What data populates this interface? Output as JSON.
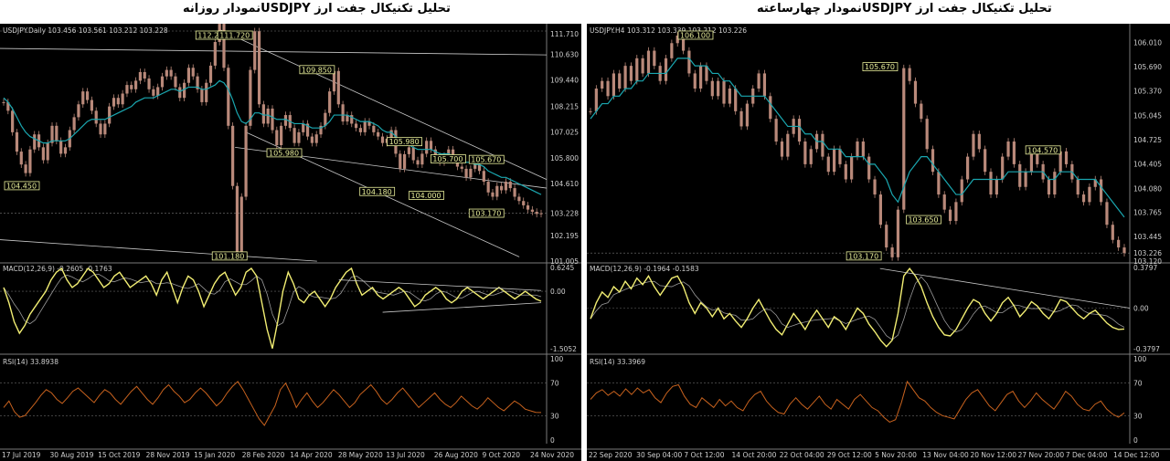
{
  "titles": {
    "left": "تحلیل تکنیکال جفت ارز  USDJPYنمودار روزانه",
    "right": "تحلیل تکنیکال جفت ارز  USDJPYنمودار چهارساعته"
  },
  "colors": {
    "candle": "#b9897a",
    "ma": "#1aa7b0",
    "macd": "#f2ee73",
    "rsi": "#c8621e",
    "trend": "#c9c9c9",
    "label_bg": "#e8ee9a"
  },
  "chart_data": [
    {
      "type": "line",
      "name": "USDJPY.Daily",
      "header": "USDJPY.Daily  103.456 103.561 103.212 103.228",
      "y_ticks": [
        "111.710",
        "110.630",
        "109.440",
        "108.215",
        "107.025",
        "105.800",
        "104.610",
        "103.228",
        "102.195",
        "101.005"
      ],
      "ylim": [
        101.005,
        111.71
      ],
      "price_labels": [
        {
          "t": "112.220",
          "x": 0.36,
          "y": 112.22
        },
        {
          "t": "111.720",
          "x": 0.4,
          "y": 111.72
        },
        {
          "t": "109.850",
          "x": 0.55,
          "y": 109.85
        },
        {
          "t": "105.980",
          "x": 0.49,
          "y": 105.98
        },
        {
          "t": "105.980",
          "x": 0.71,
          "y": 106.5
        },
        {
          "t": "104.450",
          "x": 0.01,
          "y": 104.45
        },
        {
          "t": "104.180",
          "x": 0.66,
          "y": 104.18
        },
        {
          "t": "105.700",
          "x": 0.79,
          "y": 105.7
        },
        {
          "t": "105.670",
          "x": 0.86,
          "y": 105.67
        },
        {
          "t": "104.000",
          "x": 0.75,
          "y": 104.0
        },
        {
          "t": "103.170",
          "x": 0.86,
          "y": 103.17
        },
        {
          "t": "101.180",
          "x": 0.39,
          "y": 101.18
        }
      ],
      "close": [
        108.4,
        108.0,
        107.0,
        106.1,
        105.5,
        105.1,
        106.2,
        106.9,
        106.3,
        105.7,
        106.5,
        107.3,
        106.6,
        106.0,
        106.3,
        107.1,
        107.7,
        108.3,
        108.9,
        108.5,
        108.0,
        107.4,
        106.9,
        107.4,
        108.2,
        108.6,
        108.3,
        108.8,
        109.2,
        109.0,
        109.4,
        109.8,
        109.5,
        109.0,
        108.7,
        109.1,
        109.6,
        109.9,
        109.6,
        109.1,
        108.6,
        109.3,
        110.0,
        109.6,
        109.0,
        108.4,
        109.3,
        110.1,
        111.2,
        112.2,
        110.0,
        107.3,
        104.5,
        101.2,
        104.0,
        107.3,
        109.9,
        111.7,
        108.3,
        107.4,
        108.1,
        107.1,
        106.4,
        107.3,
        107.8,
        107.2,
        106.5,
        107.0,
        107.4,
        106.8,
        106.5,
        106.9,
        107.3,
        107.9,
        108.9,
        109.85,
        108.3,
        107.5,
        107.8,
        107.4,
        107.2,
        107.0,
        107.5,
        107.3,
        107.0,
        106.8,
        106.5,
        106.7,
        107.1,
        106.0,
        105.3,
        105.98,
        106.3,
        105.7,
        105.5,
        106.0,
        106.6,
        106.2,
        105.9,
        105.6,
        105.9,
        106.2,
        105.7,
        105.4,
        105.3,
        104.9,
        105.3,
        105.5,
        105.2,
        104.7,
        104.2,
        104.0,
        104.5,
        104.3,
        104.7,
        104.4,
        104.0,
        103.8,
        103.6,
        103.4,
        103.3,
        103.2,
        103.228
      ],
      "ma": [
        108.6,
        108.4,
        108.1,
        107.7,
        107.3,
        107.0,
        106.8,
        106.7,
        106.6,
        106.5,
        106.5,
        106.6,
        106.6,
        106.6,
        106.6,
        106.7,
        106.9,
        107.1,
        107.3,
        107.5,
        107.6,
        107.6,
        107.6,
        107.6,
        107.7,
        107.8,
        107.9,
        108.0,
        108.1,
        108.2,
        108.4,
        108.5,
        108.6,
        108.6,
        108.6,
        108.7,
        108.8,
        108.9,
        109.0,
        109.0,
        108.9,
        109.0,
        109.1,
        109.1,
        109.1,
        109.0,
        109.0,
        109.1,
        109.2,
        109.4,
        109.3,
        109.0,
        108.5,
        107.9,
        107.5,
        107.4,
        107.6,
        107.9,
        107.9,
        107.8,
        107.8,
        107.7,
        107.6,
        107.6,
        107.6,
        107.5,
        107.4,
        107.4,
        107.4,
        107.3,
        107.2,
        107.2,
        107.2,
        107.3,
        107.5,
        107.8,
        107.8,
        107.8,
        107.8,
        107.7,
        107.6,
        107.5,
        107.5,
        107.5,
        107.4,
        107.3,
        107.1,
        107.0,
        107.0,
        106.8,
        106.6,
        106.5,
        106.4,
        106.3,
        106.2,
        106.2,
        106.2,
        106.2,
        106.1,
        106.0,
        106.0,
        106.0,
        105.9,
        105.8,
        105.7,
        105.6,
        105.6,
        105.5,
        105.5,
        105.4,
        105.2,
        105.1,
        105.0,
        104.9,
        104.9,
        104.8,
        104.7,
        104.6,
        104.5,
        104.4,
        104.3,
        104.2,
        104.1
      ],
      "macd_header": "MACD(12,26,9) -0.2605 -0.1763",
      "macd_ticks": [
        "0.6245",
        "0.00",
        "-1.5052"
      ],
      "macd": [
        0.1,
        -0.3,
        -0.8,
        -1.1,
        -0.9,
        -0.6,
        -0.4,
        -0.2,
        0.0,
        0.3,
        0.5,
        0.6,
        0.3,
        0.1,
        0.2,
        0.4,
        0.6,
        0.5,
        0.3,
        0.1,
        0.2,
        0.4,
        0.5,
        0.3,
        0.1,
        0.2,
        0.3,
        0.4,
        0.2,
        -0.1,
        0.3,
        0.5,
        0.1,
        -0.3,
        0.1,
        0.4,
        0.3,
        0.0,
        -0.4,
        -0.1,
        0.2,
        0.4,
        0.5,
        0.2,
        -0.1,
        0.1,
        0.5,
        0.6,
        0.4,
        -0.3,
        -1.0,
        -1.5,
        -0.8,
        0.0,
        0.5,
        0.2,
        -0.2,
        -0.3,
        -0.1,
        0.0,
        -0.2,
        -0.4,
        -0.2,
        0.1,
        0.3,
        0.5,
        0.6,
        0.2,
        -0.1,
        0.0,
        0.1,
        -0.1,
        -0.2,
        -0.1,
        0.0,
        0.1,
        0.0,
        -0.2,
        -0.4,
        -0.3,
        -0.1,
        0.0,
        0.1,
        0.0,
        -0.2,
        -0.3,
        -0.2,
        0.0,
        0.1,
        0.0,
        -0.1,
        -0.2,
        -0.1,
        0.0,
        0.1,
        0.0,
        -0.1,
        -0.2,
        -0.1,
        0.0,
        -0.1,
        -0.2,
        -0.26
      ],
      "rsi_header": "RSI(14) 33.8938",
      "rsi_ticks": [
        "100",
        "70",
        "30",
        "0"
      ],
      "rsi": [
        40,
        48,
        35,
        28,
        30,
        38,
        46,
        55,
        62,
        58,
        50,
        45,
        52,
        60,
        64,
        58,
        52,
        46,
        55,
        62,
        58,
        50,
        44,
        52,
        60,
        66,
        58,
        50,
        44,
        52,
        62,
        68,
        60,
        54,
        46,
        50,
        58,
        64,
        58,
        50,
        42,
        48,
        58,
        66,
        72,
        62,
        50,
        38,
        26,
        18,
        30,
        42,
        62,
        70,
        56,
        40,
        50,
        58,
        48,
        40,
        46,
        54,
        62,
        56,
        48,
        40,
        46,
        56,
        62,
        68,
        60,
        50,
        44,
        50,
        58,
        64,
        56,
        48,
        40,
        46,
        52,
        58,
        50,
        44,
        40,
        46,
        54,
        48,
        42,
        38,
        44,
        52,
        46,
        40,
        36,
        42,
        48,
        44,
        38,
        36,
        34,
        33.9
      ],
      "x_ticks": [
        "17 Jul 2019",
        "30 Aug 2019",
        "15 Oct 2019",
        "28 Nov 2019",
        "15 Jan 2020",
        "28 Feb 2020",
        "14 Apr 2020",
        "28 May 2020",
        "13 Jul 2020",
        "26 Aug 2020",
        "9 Oct 2020",
        "24 Nov 2020"
      ]
    },
    {
      "type": "line",
      "name": "USDJPY.H4",
      "header": "USDJPY.H4  103.312 103.339 103.212 103.226",
      "y_ticks": [
        "106.010",
        "105.690",
        "105.370",
        "105.045",
        "104.725",
        "104.405",
        "104.080",
        "103.765",
        "103.445",
        "103.226",
        "103.120"
      ],
      "ylim": [
        103.12,
        106.16
      ],
      "price_labels": [
        {
          "t": "106.100",
          "x": 0.17,
          "y": 106.1
        },
        {
          "t": "105.670",
          "x": 0.51,
          "y": 105.67
        },
        {
          "t": "104.570",
          "x": 0.81,
          "y": 104.57
        },
        {
          "t": "103.650",
          "x": 0.59,
          "y": 103.65
        },
        {
          "t": "103.170",
          "x": 0.48,
          "y": 103.17
        }
      ],
      "close": [
        105.1,
        105.4,
        105.5,
        105.3,
        105.6,
        105.4,
        105.7,
        105.5,
        105.8,
        105.6,
        105.9,
        105.7,
        105.5,
        105.8,
        106.0,
        106.1,
        105.9,
        105.6,
        105.4,
        105.7,
        105.5,
        105.3,
        105.5,
        105.2,
        105.4,
        105.1,
        104.9,
        105.2,
        105.4,
        105.6,
        105.3,
        105.0,
        104.7,
        104.5,
        104.8,
        105.0,
        104.7,
        104.4,
        104.6,
        104.8,
        104.5,
        104.3,
        104.6,
        104.4,
        104.2,
        104.5,
        104.7,
        104.5,
        104.2,
        104.0,
        103.6,
        103.3,
        103.17,
        103.8,
        105.67,
        105.5,
        105.2,
        105.0,
        104.6,
        104.3,
        104.0,
        103.8,
        103.65,
        103.9,
        104.2,
        104.5,
        104.8,
        104.6,
        104.3,
        104.0,
        104.2,
        104.5,
        104.7,
        104.4,
        104.1,
        104.3,
        104.6,
        104.4,
        104.2,
        104.0,
        104.3,
        104.57,
        104.4,
        104.2,
        104.0,
        103.9,
        104.1,
        104.2,
        103.9,
        103.6,
        103.4,
        103.3,
        103.226
      ],
      "ma": [
        105.0,
        105.1,
        105.2,
        105.2,
        105.3,
        105.3,
        105.4,
        105.4,
        105.5,
        105.5,
        105.6,
        105.6,
        105.6,
        105.6,
        105.7,
        105.8,
        105.8,
        105.8,
        105.7,
        105.7,
        105.7,
        105.6,
        105.6,
        105.5,
        105.5,
        105.4,
        105.3,
        105.3,
        105.3,
        105.3,
        105.3,
        105.2,
        105.1,
        105.0,
        104.9,
        104.9,
        104.9,
        104.8,
        104.8,
        104.7,
        104.7,
        104.6,
        104.6,
        104.6,
        104.5,
        104.5,
        104.5,
        104.5,
        104.4,
        104.4,
        104.3,
        104.2,
        104.0,
        103.9,
        104.1,
        104.3,
        104.4,
        104.5,
        104.5,
        104.4,
        104.3,
        104.2,
        104.1,
        104.0,
        104.0,
        104.1,
        104.2,
        104.2,
        104.2,
        104.2,
        104.2,
        104.2,
        104.3,
        104.3,
        104.3,
        104.3,
        104.3,
        104.3,
        104.3,
        104.2,
        104.2,
        104.3,
        104.3,
        104.3,
        104.2,
        104.2,
        104.2,
        104.2,
        104.1,
        104.0,
        103.9,
        103.8,
        103.7
      ],
      "macd_header": "MACD(12,26,9) -0.1964 -0.1583",
      "macd_ticks": [
        "0.3797",
        "0.00",
        "-0.3797"
      ],
      "macd": [
        -0.1,
        0.05,
        0.15,
        0.1,
        0.2,
        0.15,
        0.25,
        0.18,
        0.28,
        0.22,
        0.3,
        0.2,
        0.12,
        0.2,
        0.28,
        0.3,
        0.2,
        0.05,
        -0.05,
        0.05,
        0.0,
        -0.08,
        0.0,
        -0.1,
        -0.05,
        -0.12,
        -0.18,
        -0.1,
        0.0,
        0.08,
        -0.02,
        -0.12,
        -0.2,
        -0.25,
        -0.15,
        -0.05,
        -0.12,
        -0.2,
        -0.1,
        -0.02,
        -0.1,
        -0.18,
        -0.08,
        -0.12,
        -0.2,
        -0.1,
        0.0,
        -0.05,
        -0.15,
        -0.22,
        -0.3,
        -0.36,
        -0.3,
        -0.05,
        0.3,
        0.37,
        0.3,
        0.2,
        0.05,
        -0.08,
        -0.18,
        -0.25,
        -0.26,
        -0.2,
        -0.1,
        0.0,
        0.08,
        0.05,
        -0.05,
        -0.12,
        -0.05,
        0.05,
        0.1,
        0.02,
        -0.08,
        -0.02,
        0.06,
        0.02,
        -0.05,
        -0.1,
        -0.02,
        0.08,
        0.06,
        0.0,
        -0.06,
        -0.1,
        -0.05,
        -0.02,
        -0.08,
        -0.14,
        -0.18,
        -0.2,
        -0.196
      ],
      "rsi_header": "RSI(14) 33.3969",
      "rsi_ticks": [
        "100",
        "70",
        "30",
        "0"
      ],
      "rsi": [
        50,
        58,
        62,
        55,
        60,
        54,
        63,
        56,
        64,
        58,
        62,
        52,
        46,
        58,
        66,
        68,
        54,
        44,
        40,
        52,
        46,
        40,
        50,
        42,
        48,
        40,
        36,
        48,
        56,
        60,
        48,
        40,
        34,
        32,
        44,
        52,
        44,
        38,
        46,
        54,
        44,
        38,
        50,
        44,
        38,
        50,
        56,
        48,
        40,
        36,
        28,
        22,
        25,
        46,
        72,
        62,
        52,
        48,
        40,
        34,
        30,
        28,
        26,
        38,
        50,
        58,
        62,
        52,
        42,
        36,
        46,
        56,
        60,
        48,
        40,
        48,
        58,
        50,
        44,
        38,
        48,
        60,
        54,
        44,
        38,
        36,
        44,
        48,
        38,
        32,
        28,
        33.4
      ],
      "x_ticks": [
        "22 Sep 2020",
        "30 Sep 04:00",
        "7 Oct 12:00",
        "14 Oct 20:00",
        "22 Oct 04:00",
        "29 Oct 12:00",
        "5 Nov 20:00",
        "13 Nov 04:00",
        "20 Nov 12:00",
        "27 Nov 20:00",
        "7 Dec 04:00",
        "14 Dec 12:00"
      ]
    }
  ]
}
